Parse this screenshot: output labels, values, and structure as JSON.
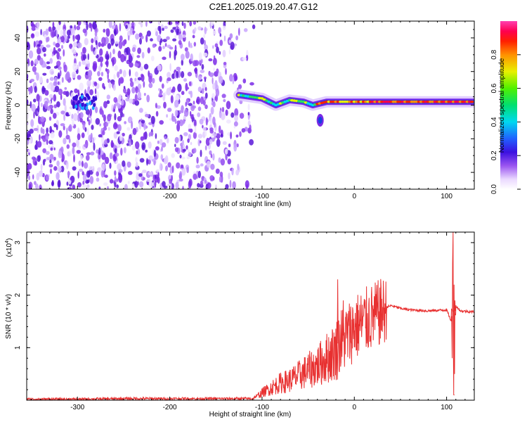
{
  "title": "C2E1.2025.019.20.47.G12",
  "chart_data": [
    {
      "type": "heatmap",
      "name": "spectrogram",
      "xlabel": "Height of straight line (km)",
      "ylabel": "Frequency (Hz)",
      "xlim": [
        -355,
        130
      ],
      "ylim": [
        -50,
        50
      ],
      "xticks": [
        -300,
        -200,
        -100,
        0,
        100
      ],
      "xtick_labels": [
        "-300",
        "-200",
        "-100",
        "0",
        "100"
      ],
      "yticks": [
        -40,
        -20,
        0,
        20,
        40
      ],
      "ytick_labels": [
        "-40",
        "-20",
        "0",
        "20",
        "40"
      ],
      "colorbar": {
        "label": "Normalized spectral amplitude",
        "range": [
          0,
          1
        ],
        "ticks": [
          0.0,
          0.2,
          0.4,
          0.6,
          0.8
        ],
        "tick_labels": [
          "0.0",
          "0.2",
          "0.4",
          "0.6",
          "0.8"
        ],
        "colormap": "rainbow (white-purple-blue-cyan-green-yellow-red-magenta)"
      },
      "description_of_features": {
        "noise_region_x": [
          -355,
          -125
        ],
        "signal_track": [
          {
            "x": -125,
            "y": 6
          },
          {
            "x": -100,
            "y": 4
          },
          {
            "x": -85,
            "y": 0
          },
          {
            "x": -70,
            "y": 3
          },
          {
            "x": -55,
            "y": 2
          },
          {
            "x": -45,
            "y": 0
          },
          {
            "x": -30,
            "y": 2
          },
          {
            "x": 0,
            "y": 2
          },
          {
            "x": 50,
            "y": 2
          },
          {
            "x": 100,
            "y": 2
          },
          {
            "x": 130,
            "y": 2
          }
        ],
        "side_blob": {
          "x": -37,
          "y": -9
        }
      }
    },
    {
      "type": "line",
      "name": "snr",
      "xlabel": "Height of straight line (km)",
      "ylabel": "SNR (10 * v/v)",
      "y_multiplier_label": "(x10",
      "y_multiplier_exp": "4",
      "xlim": [
        -355,
        130
      ],
      "ylim": [
        0,
        3.2
      ],
      "xticks": [
        -300,
        -200,
        -100,
        0,
        100
      ],
      "xtick_labels": [
        "-300",
        "-200",
        "-100",
        "0",
        "100"
      ],
      "yticks": [
        1,
        2,
        3
      ],
      "ytick_labels": [
        "1",
        "2",
        "3"
      ],
      "series": [
        {
          "color": "#e83030",
          "x": [
            -355,
            -300,
            -250,
            -200,
            -150,
            -110,
            -100,
            -90,
            -80,
            -70,
            -60,
            -50,
            -40,
            -30,
            -20,
            -15,
            -10,
            0,
            10,
            20,
            30,
            40,
            50,
            60,
            80,
            100,
            105,
            107,
            108,
            110,
            115,
            130
          ],
          "y": [
            0.02,
            0.02,
            0.03,
            0.03,
            0.03,
            0.03,
            0.15,
            0.25,
            0.35,
            0.4,
            0.5,
            0.6,
            0.7,
            0.85,
            1.0,
            1.2,
            1.25,
            1.45,
            1.55,
            1.65,
            1.75,
            1.8,
            1.75,
            1.72,
            1.7,
            1.72,
            1.5,
            3.2,
            0.1,
            1.8,
            1.7,
            1.68
          ],
          "spikes": [
            {
              "x": -18,
              "y": 2.3
            },
            {
              "x": -12,
              "y": 1.9
            },
            {
              "x": 107,
              "y": 3.2
            },
            {
              "x": 108,
              "y": 0.1
            }
          ]
        }
      ]
    }
  ]
}
